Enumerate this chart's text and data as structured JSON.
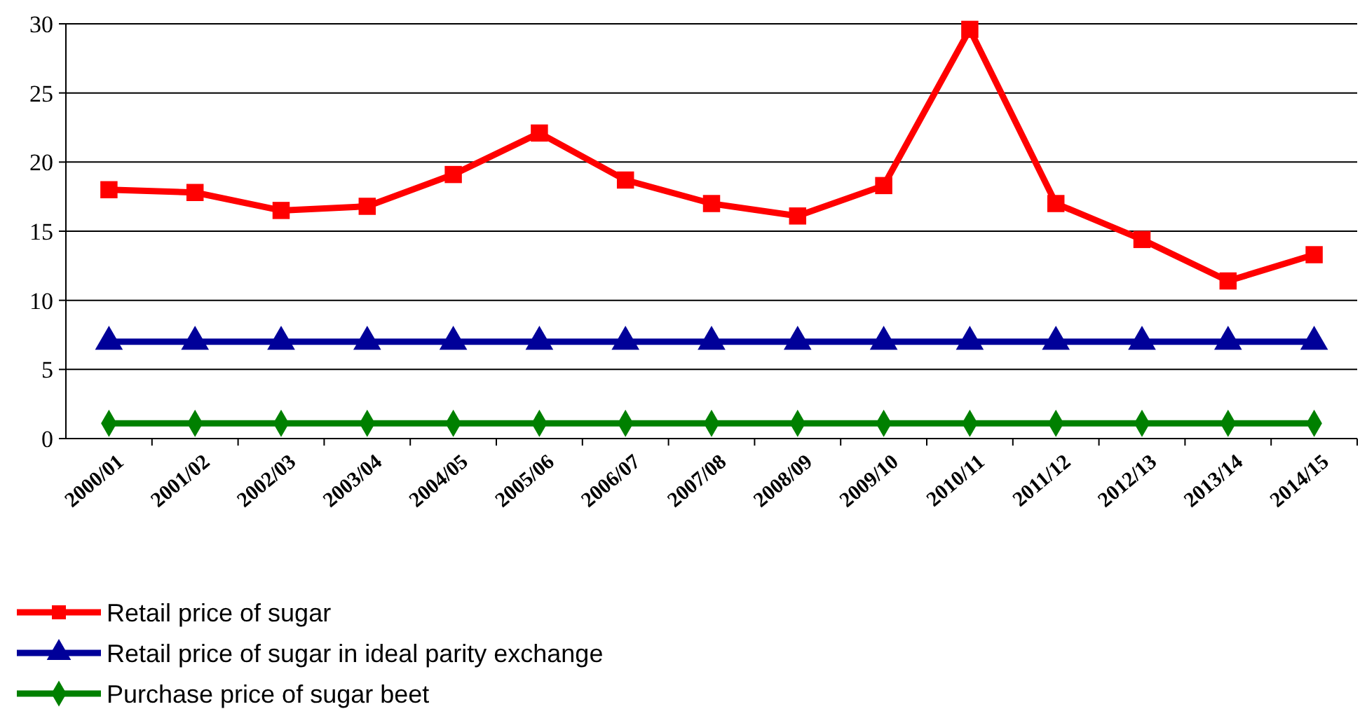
{
  "chart_data": {
    "type": "line",
    "categories": [
      "2000/01",
      "2001/02",
      "2002/03",
      "2003/04",
      "2004/05",
      "2005/06",
      "2006/07",
      "2007/08",
      "2008/09",
      "2009/10",
      "2010/11",
      "2011/12",
      "2012/13",
      "2013/14",
      "2014/15"
    ],
    "series": [
      {
        "name": "Retail price of sugar",
        "color": "#ff0000",
        "marker": "square",
        "values": [
          18.0,
          17.8,
          16.5,
          16.8,
          19.1,
          22.1,
          18.7,
          17.0,
          16.1,
          18.3,
          29.6,
          17.0,
          14.4,
          11.4,
          13.3
        ]
      },
      {
        "name": "Retail price of sugar in ideal parity exchange",
        "color": "#000099",
        "marker": "triangle",
        "values": [
          7.0,
          7.0,
          7.0,
          7.0,
          7.0,
          7.0,
          7.0,
          7.0,
          7.0,
          7.0,
          7.0,
          7.0,
          7.0,
          7.0,
          7.0
        ]
      },
      {
        "name": "Purchase price of sugar beet",
        "color": "#008000",
        "marker": "diamond",
        "values": [
          1.1,
          1.1,
          1.1,
          1.1,
          1.1,
          1.1,
          1.1,
          1.1,
          1.1,
          1.1,
          1.1,
          1.1,
          1.1,
          1.1,
          1.1
        ]
      }
    ],
    "ylim": [
      0,
      30
    ],
    "yticks": [
      0,
      5,
      10,
      15,
      20,
      25,
      30
    ],
    "grid": "y",
    "legend": "bottom",
    "line_style": "solid"
  }
}
